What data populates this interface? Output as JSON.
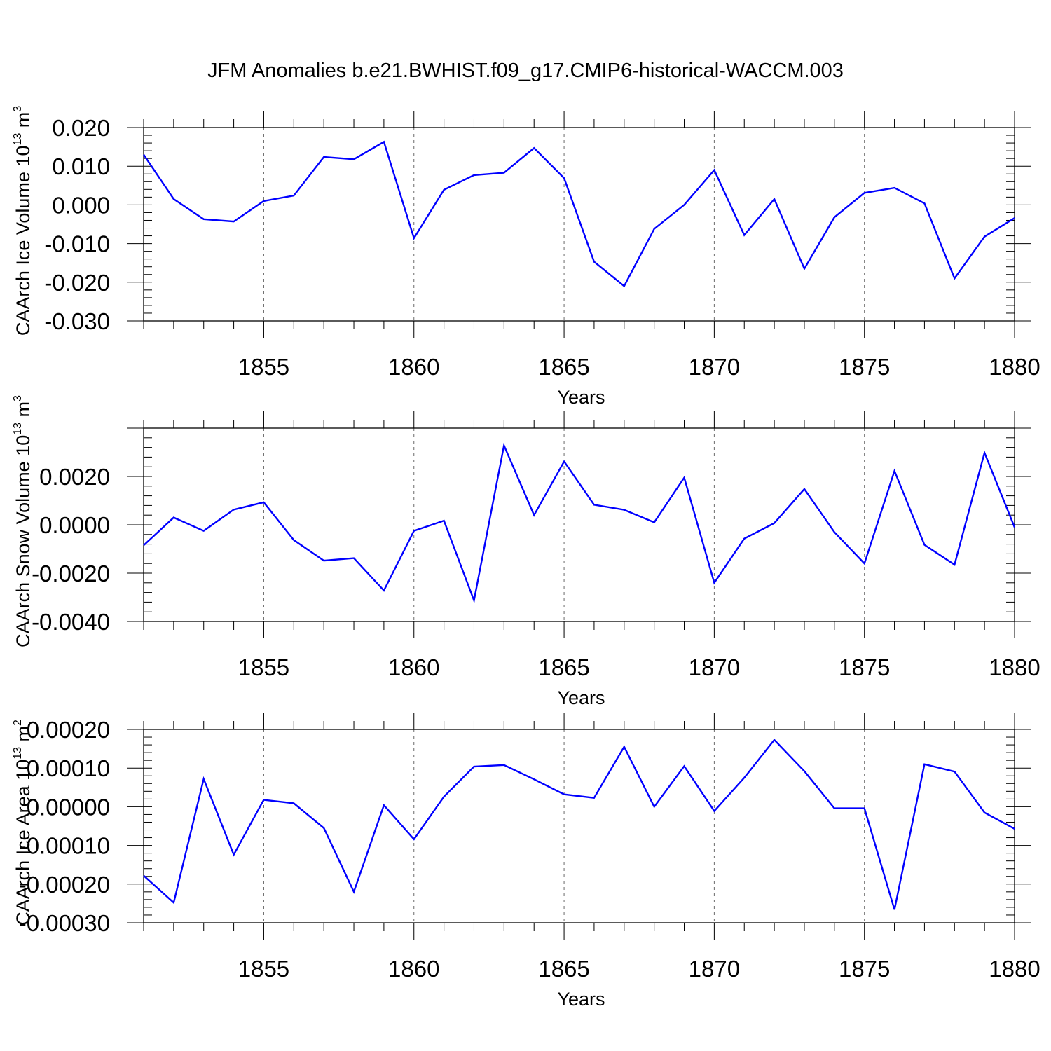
{
  "title": "JFM Anomalies b.e21.BWHIST.f09_g17.CMIP6-historical-WACCM.003",
  "colors": {
    "line": "#0000ff",
    "axis": "#000000",
    "grid": "#6b6b6b"
  },
  "chart_data": [
    {
      "type": "line",
      "ylabel": {
        "main": "CAArch Ice Volume 10",
        "exp": "13",
        "unit": " m",
        "unit_exp": "3"
      },
      "xlabel": "Years",
      "xlim": [
        1851,
        1880
      ],
      "ylim": [
        -0.03,
        0.02
      ],
      "yticks": [
        0.02,
        0.01,
        0.0,
        -0.01,
        -0.02,
        -0.03
      ],
      "ytick_labels": [
        "0.020",
        "0.010",
        "0.000",
        "-0.010",
        "-0.020",
        "-0.030"
      ],
      "xticks": [
        1855,
        1860,
        1865,
        1870,
        1875,
        1880
      ],
      "xtick_labels": [
        "1855",
        "1860",
        "1865",
        "1870",
        "1875",
        "1880"
      ],
      "x": [
        1851,
        1852,
        1853,
        1854,
        1855,
        1856,
        1857,
        1858,
        1859,
        1860,
        1861,
        1862,
        1863,
        1864,
        1865,
        1866,
        1867,
        1868,
        1869,
        1870,
        1871,
        1872,
        1873,
        1874,
        1875,
        1876,
        1877,
        1878,
        1879,
        1880
      ],
      "values": [
        0.013,
        0.0015,
        -0.0037,
        -0.0043,
        0.001,
        0.0024,
        0.0124,
        0.0118,
        0.0163,
        -0.0086,
        0.0039,
        0.0077,
        0.0083,
        0.0147,
        0.0069,
        -0.0147,
        -0.021,
        -0.0062,
        0.0,
        0.009,
        -0.0078,
        0.0015,
        -0.0165,
        -0.0032,
        0.0031,
        0.0044,
        0.0004,
        -0.019,
        -0.0082,
        -0.0034
      ]
    },
    {
      "type": "line",
      "ylabel": {
        "main": "CAArch Snow Volume 10",
        "exp": "13",
        "unit": " m",
        "unit_exp": "3"
      },
      "xlabel": "Years",
      "xlim": [
        1851,
        1880
      ],
      "ylim": [
        -0.004,
        0.004
      ],
      "yticks": [
        0.002,
        0.0,
        -0.002,
        -0.004
      ],
      "ytick_labels": [
        "0.0020",
        "0.0000",
        "-0.0020",
        "-0.0040"
      ],
      "xticks": [
        1855,
        1860,
        1865,
        1870,
        1875,
        1880
      ],
      "xtick_labels": [
        "1855",
        "1860",
        "1865",
        "1870",
        "1875",
        "1880"
      ],
      "x": [
        1851,
        1852,
        1853,
        1854,
        1855,
        1856,
        1857,
        1858,
        1859,
        1860,
        1861,
        1862,
        1863,
        1864,
        1865,
        1866,
        1867,
        1868,
        1869,
        1870,
        1871,
        1872,
        1873,
        1874,
        1875,
        1876,
        1877,
        1878,
        1879,
        1880
      ],
      "values": [
        -0.00085,
        0.0003,
        -0.00025,
        0.00063,
        0.00093,
        -0.00063,
        -0.00148,
        -0.00138,
        -0.00272,
        -0.00025,
        0.00017,
        -0.00313,
        0.00328,
        0.0004,
        0.00262,
        0.00083,
        0.00062,
        0.0001,
        0.00195,
        -0.0024,
        -0.00057,
        7e-05,
        0.00148,
        -0.0003,
        -0.0016,
        0.00223,
        -0.00083,
        -0.00165,
        0.00298,
        -0.0001
      ]
    },
    {
      "type": "line",
      "ylabel": {
        "main": "CAArch Ice Area 10",
        "exp": "13",
        "unit": " m",
        "unit_exp": "2"
      },
      "xlabel": "Years",
      "xlim": [
        1851,
        1880
      ],
      "ylim": [
        -0.0003,
        0.0002
      ],
      "yticks": [
        0.0002,
        0.0001,
        0.0,
        -0.0001,
        -0.0002,
        -0.0003
      ],
      "ytick_labels": [
        "0.00020",
        "0.00010",
        "0.00000",
        "-0.00010",
        "-0.00020",
        "-0.00030"
      ],
      "xticks": [
        1855,
        1860,
        1865,
        1870,
        1875,
        1880
      ],
      "xtick_labels": [
        "1855",
        "1860",
        "1865",
        "1870",
        "1875",
        "1880"
      ],
      "x": [
        1851,
        1852,
        1853,
        1854,
        1855,
        1856,
        1857,
        1858,
        1859,
        1860,
        1861,
        1862,
        1863,
        1864,
        1865,
        1866,
        1867,
        1868,
        1869,
        1870,
        1871,
        1872,
        1873,
        1874,
        1875,
        1876,
        1877,
        1878,
        1879,
        1880
      ],
      "values": [
        -0.000178,
        -0.000248,
        7.2e-05,
        -0.000124,
        1.8e-05,
        9e-06,
        -5.5e-05,
        -0.00022,
        4e-06,
        -8.4e-05,
        2.6e-05,
        0.000104,
        0.000108,
        7.1e-05,
        3.2e-05,
        2.3e-05,
        0.000155,
        0.0,
        0.000105,
        -1.1e-05,
        7.5e-05,
        0.000173,
        9.2e-05,
        -4e-06,
        -4e-06,
        -0.000266,
        0.00011,
        9.1e-05,
        -1.5e-05,
        -5.7e-05
      ]
    }
  ]
}
